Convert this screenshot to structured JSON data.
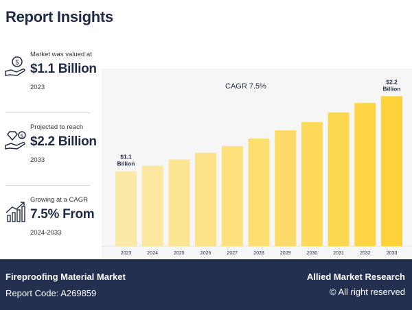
{
  "header": {
    "title": "Report Insights"
  },
  "stats": [
    {
      "label": "Market was valued at",
      "value": "$1.1 Billion",
      "sub": "2023",
      "icon": "money-hand-icon"
    },
    {
      "label": "Projected to reach",
      "value": "$2.2 Billion",
      "sub": "2033",
      "icon": "diamond-hand-icon"
    },
    {
      "label": "Growing at a CAGR",
      "value": "7.5% From",
      "sub": "2024-2033",
      "icon": "growth-chart-icon"
    }
  ],
  "footer": {
    "market": "Fireproofing Material Market",
    "report_code": "Report Code: A269859",
    "brand": "Allied Market Research",
    "rights": "© All right reserved"
  },
  "colors": {
    "bar_light": "#fbe9a8",
    "bar_dark": "#ffd23a",
    "footer_bg": "#233050"
  },
  "chart_data": {
    "type": "bar",
    "title": "CAGR 7.5%",
    "categories": [
      "2023",
      "2024",
      "2025",
      "2026",
      "2027",
      "2028",
      "2029",
      "2030",
      "2031",
      "2032",
      "2033"
    ],
    "values": [
      1.1,
      1.18,
      1.27,
      1.37,
      1.47,
      1.58,
      1.7,
      1.82,
      1.96,
      2.1,
      2.2
    ],
    "ylim": [
      0,
      2.5
    ],
    "grid": false,
    "data_labels": [
      {
        "index": 0,
        "lines": [
          "$1.1",
          "Billion"
        ]
      },
      {
        "index": 10,
        "lines": [
          "$2.2",
          "Billion"
        ]
      }
    ]
  }
}
